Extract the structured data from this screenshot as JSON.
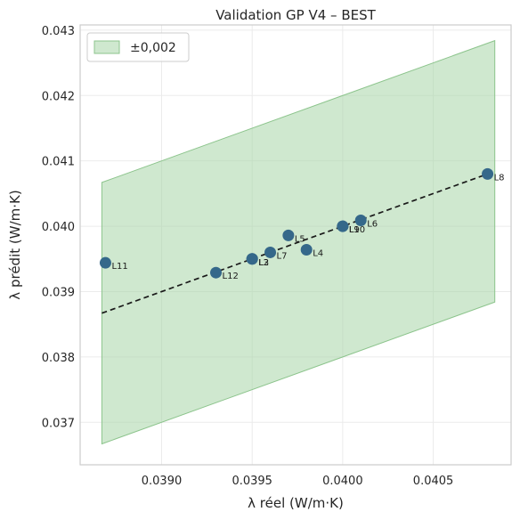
{
  "chart_data": {
    "type": "scatter",
    "title": "Validation GP V4 – BEST",
    "xlabel": "λ réel (W/m·K)",
    "ylabel": "λ prédit (W/m·K)",
    "xlim": [
      0.03855,
      0.04093
    ],
    "ylim": [
      0.03635,
      0.04308
    ],
    "xticks": [
      "0.0390",
      "0.0395",
      "0.0400",
      "0.0405"
    ],
    "xtick_values": [
      0.039,
      0.0395,
      0.04,
      0.0405
    ],
    "yticks": [
      "0.037",
      "0.038",
      "0.039",
      "0.040",
      "0.041",
      "0.042",
      "0.043"
    ],
    "ytick_values": [
      0.037,
      0.038,
      0.039,
      0.04,
      0.041,
      0.042,
      0.043
    ],
    "grid": true,
    "legend_position": "top-left",
    "legend": [
      "±0,002"
    ],
    "band": {
      "halfwidth": 0.002,
      "x_start": 0.03867,
      "x_end": 0.04084,
      "color": "#a8d5a8"
    },
    "reference_line": {
      "x_start": 0.03867,
      "x_end": 0.04084,
      "style": "dashed",
      "color": "#1a1a1a"
    },
    "marker_color": "#35688a",
    "points": [
      {
        "label": "L11",
        "x": 0.03869,
        "y": 0.03944
      },
      {
        "label": "L12",
        "x": 0.0393,
        "y": 0.03929
      },
      {
        "label": "L2",
        "x": 0.0395,
        "y": 0.0395
      },
      {
        "label": "L3",
        "x": 0.0395,
        "y": 0.0395
      },
      {
        "label": "L7",
        "x": 0.0396,
        "y": 0.0396
      },
      {
        "label": "L5",
        "x": 0.0397,
        "y": 0.03986
      },
      {
        "label": "L4",
        "x": 0.0398,
        "y": 0.03964
      },
      {
        "label": "L9",
        "x": 0.04,
        "y": 0.04
      },
      {
        "label": "L10",
        "x": 0.04,
        "y": 0.04
      },
      {
        "label": "L6",
        "x": 0.0401,
        "y": 0.04009
      },
      {
        "label": "L8",
        "x": 0.0408,
        "y": 0.0408
      }
    ]
  }
}
